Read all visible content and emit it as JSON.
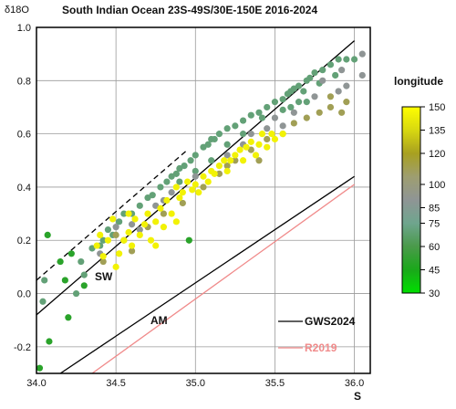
{
  "chart_data": {
    "type": "scatter",
    "title": "South Indian Ocean 23S-49S/30E-150E 2016-2024",
    "ylabel": "δ18O",
    "xlabel": "S",
    "xlim": [
      34.0,
      36.1
    ],
    "ylim": [
      -0.3,
      1.0
    ],
    "x_ticks": [
      "34.0",
      "34.5",
      "35.0",
      "35.5",
      "36.0"
    ],
    "y_ticks": [
      "-0.2",
      "0.0",
      "0.2",
      "0.4",
      "0.6",
      "0.8",
      "1.0"
    ],
    "grid": true,
    "colorbar": {
      "label": "longitude",
      "ticks": [
        "30",
        "45",
        "60",
        "75",
        "85",
        "100",
        "120",
        "135",
        "150"
      ],
      "range": [
        30,
        150
      ],
      "colors": [
        "#00e000",
        "#1aa81a",
        "#4a9a4a",
        "#6fa58e",
        "#8f9595",
        "#9e9e70",
        "#a8a020",
        "#d8d810",
        "#ffff00"
      ]
    },
    "lines": [
      {
        "name": "SW",
        "style": "solid",
        "color": "#000000",
        "x": [
          34.0,
          36.0
        ],
        "y": [
          -0.08,
          0.95
        ]
      },
      {
        "name": "",
        "style": "dashed",
        "color": "#000000",
        "x": [
          34.0,
          34.95
        ],
        "y": [
          0.05,
          0.54
        ]
      },
      {
        "name": "AM",
        "style": "solid",
        "color": "#000000",
        "x": [
          34.15,
          36.0
        ],
        "y": [
          -0.3,
          0.44
        ]
      },
      {
        "name": "R2019",
        "style": "solid",
        "color": "#f08a8a",
        "x": [
          34.35,
          36.0
        ],
        "y": [
          -0.3,
          0.41
        ]
      }
    ],
    "legend": {
      "placement": "bottom-right",
      "entries": [
        "GWS2024",
        "R2019"
      ]
    },
    "series": [
      {
        "lon": 50,
        "points": [
          [
            34.02,
            -0.28
          ],
          [
            34.08,
            -0.18
          ],
          [
            34.15,
            0.12
          ],
          [
            34.2,
            -0.09
          ],
          [
            34.22,
            0.15
          ],
          [
            34.07,
            0.22
          ],
          [
            34.18,
            0.05
          ],
          [
            34.3,
            0.03
          ],
          [
            34.96,
            0.2
          ]
        ]
      },
      {
        "lon": 70,
        "points": [
          [
            34.05,
            0.05
          ],
          [
            34.04,
            -0.03
          ],
          [
            34.3,
            0.07
          ],
          [
            34.28,
            0.12
          ],
          [
            34.25,
            0.0
          ],
          [
            34.35,
            0.17
          ],
          [
            34.4,
            0.18
          ],
          [
            34.42,
            0.2
          ],
          [
            34.45,
            0.24
          ],
          [
            34.48,
            0.22
          ],
          [
            34.52,
            0.27
          ],
          [
            34.55,
            0.3
          ],
          [
            34.6,
            0.3
          ],
          [
            34.65,
            0.33
          ],
          [
            34.7,
            0.36
          ],
          [
            34.73,
            0.37
          ],
          [
            34.78,
            0.4
          ],
          [
            34.82,
            0.42
          ],
          [
            34.85,
            0.44
          ],
          [
            34.88,
            0.45
          ],
          [
            34.9,
            0.47
          ],
          [
            34.93,
            0.48
          ],
          [
            34.97,
            0.5
          ],
          [
            35.0,
            0.52
          ],
          [
            35.05,
            0.55
          ],
          [
            35.08,
            0.56
          ],
          [
            35.1,
            0.58
          ],
          [
            35.12,
            0.58
          ],
          [
            35.15,
            0.6
          ],
          [
            35.2,
            0.62
          ],
          [
            35.25,
            0.63
          ],
          [
            35.3,
            0.65
          ],
          [
            35.35,
            0.67
          ],
          [
            35.4,
            0.68
          ],
          [
            35.45,
            0.7
          ],
          [
            35.5,
            0.72
          ],
          [
            35.55,
            0.73
          ],
          [
            35.58,
            0.75
          ],
          [
            35.6,
            0.76
          ],
          [
            35.62,
            0.77
          ],
          [
            35.65,
            0.78
          ],
          [
            35.7,
            0.8
          ],
          [
            35.72,
            0.81
          ],
          [
            35.75,
            0.83
          ],
          [
            35.8,
            0.84
          ],
          [
            35.85,
            0.86
          ],
          [
            35.9,
            0.88
          ],
          [
            35.95,
            0.88
          ],
          [
            36.0,
            0.88
          ],
          [
            35.88,
            0.82
          ],
          [
            35.78,
            0.79
          ],
          [
            35.68,
            0.76
          ],
          [
            35.55,
            0.69
          ],
          [
            35.42,
            0.66
          ],
          [
            35.3,
            0.6
          ],
          [
            35.2,
            0.56
          ],
          [
            35.1,
            0.5
          ],
          [
            35.0,
            0.46
          ],
          [
            34.9,
            0.42
          ],
          [
            35.6,
            0.7
          ],
          [
            35.7,
            0.72
          ],
          [
            35.65,
            0.72
          ]
        ]
      },
      {
        "lon": 90,
        "points": [
          [
            34.5,
            0.25
          ],
          [
            34.6,
            0.26
          ],
          [
            34.75,
            0.33
          ],
          [
            34.85,
            0.38
          ],
          [
            35.0,
            0.44
          ],
          [
            35.2,
            0.52
          ],
          [
            35.35,
            0.6
          ],
          [
            35.5,
            0.66
          ],
          [
            35.62,
            0.68
          ],
          [
            35.75,
            0.74
          ],
          [
            35.8,
            0.8
          ],
          [
            35.9,
            0.76
          ],
          [
            35.95,
            0.78
          ],
          [
            36.05,
            0.82
          ],
          [
            36.05,
            0.9
          ],
          [
            35.92,
            0.84
          ],
          [
            35.55,
            0.63
          ],
          [
            35.45,
            0.62
          ],
          [
            35.3,
            0.56
          ],
          [
            34.8,
            0.35
          ],
          [
            34.65,
            0.24
          ],
          [
            34.4,
            0.15
          ]
        ]
      },
      {
        "lon": 110,
        "points": [
          [
            34.42,
            0.12
          ],
          [
            34.55,
            0.2
          ],
          [
            34.7,
            0.25
          ],
          [
            34.8,
            0.3
          ],
          [
            34.92,
            0.34
          ],
          [
            35.05,
            0.4
          ],
          [
            35.15,
            0.45
          ],
          [
            35.25,
            0.5
          ],
          [
            35.35,
            0.54
          ],
          [
            35.45,
            0.58
          ],
          [
            35.55,
            0.6
          ],
          [
            35.7,
            0.66
          ],
          [
            35.85,
            0.7
          ],
          [
            35.92,
            0.68
          ],
          [
            35.95,
            0.72
          ],
          [
            35.85,
            0.74
          ],
          [
            35.78,
            0.68
          ],
          [
            35.62,
            0.64
          ],
          [
            35.4,
            0.5
          ],
          [
            35.2,
            0.48
          ],
          [
            34.6,
            0.16
          ],
          [
            34.5,
            0.22
          ]
        ]
      },
      {
        "lon": 145,
        "points": [
          [
            34.38,
            0.18
          ],
          [
            34.42,
            0.14
          ],
          [
            34.45,
            0.2
          ],
          [
            34.5,
            0.1
          ],
          [
            34.52,
            0.15
          ],
          [
            34.55,
            0.2
          ],
          [
            34.58,
            0.23
          ],
          [
            34.6,
            0.18
          ],
          [
            34.62,
            0.28
          ],
          [
            34.65,
            0.22
          ],
          [
            34.68,
            0.26
          ],
          [
            34.7,
            0.3
          ],
          [
            34.72,
            0.2
          ],
          [
            34.75,
            0.27
          ],
          [
            34.78,
            0.32
          ],
          [
            34.8,
            0.25
          ],
          [
            34.82,
            0.35
          ],
          [
            34.85,
            0.3
          ],
          [
            34.88,
            0.4
          ],
          [
            34.9,
            0.36
          ],
          [
            34.92,
            0.38
          ],
          [
            34.95,
            0.42
          ],
          [
            34.98,
            0.39
          ],
          [
            35.0,
            0.41
          ],
          [
            35.02,
            0.38
          ],
          [
            35.05,
            0.44
          ],
          [
            35.08,
            0.42
          ],
          [
            35.1,
            0.46
          ],
          [
            35.12,
            0.45
          ],
          [
            35.15,
            0.48
          ],
          [
            35.18,
            0.5
          ],
          [
            35.2,
            0.46
          ],
          [
            35.22,
            0.5
          ],
          [
            35.25,
            0.52
          ],
          [
            35.28,
            0.54
          ],
          [
            35.3,
            0.5
          ],
          [
            35.32,
            0.55
          ],
          [
            35.35,
            0.57
          ],
          [
            35.38,
            0.52
          ],
          [
            35.4,
            0.56
          ],
          [
            35.42,
            0.6
          ],
          [
            35.45,
            0.55
          ],
          [
            35.48,
            0.6
          ],
          [
            35.5,
            0.58
          ],
          [
            35.55,
            0.6
          ],
          [
            34.88,
            0.27
          ],
          [
            34.75,
            0.18
          ],
          [
            34.58,
            0.3
          ],
          [
            34.48,
            0.28
          ],
          [
            34.4,
            0.22
          ]
        ]
      }
    ]
  }
}
